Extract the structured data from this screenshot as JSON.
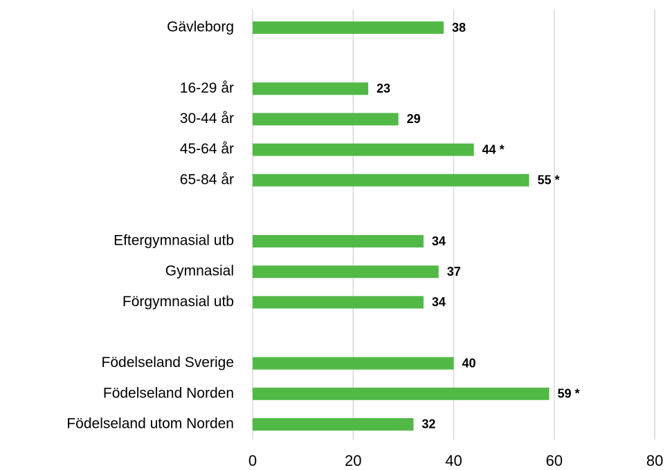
{
  "chart_data": {
    "type": "bar",
    "orientation": "horizontal",
    "categories": [
      "Gävleborg",
      null,
      "16-29 år",
      "30-44 år",
      "45-64 år",
      "65-84 år",
      null,
      "Eftergymnasial utb",
      "Gymnasial",
      "Förgymnasial utb",
      null,
      "Födelseland Sverige",
      "Födelseland Norden",
      "Födelseland utom Norden"
    ],
    "values": [
      38,
      null,
      23,
      29,
      44,
      55,
      null,
      34,
      37,
      34,
      null,
      40,
      59,
      32
    ],
    "value_labels": [
      "38",
      null,
      "23",
      "29",
      "44 *",
      "55 *",
      null,
      "34",
      "37",
      "34",
      null,
      "40",
      "59 *",
      "32"
    ],
    "color": "#52b947",
    "xlim": [
      0,
      80
    ],
    "xticks": [
      0,
      20,
      40,
      60,
      80
    ],
    "grid": true
  }
}
